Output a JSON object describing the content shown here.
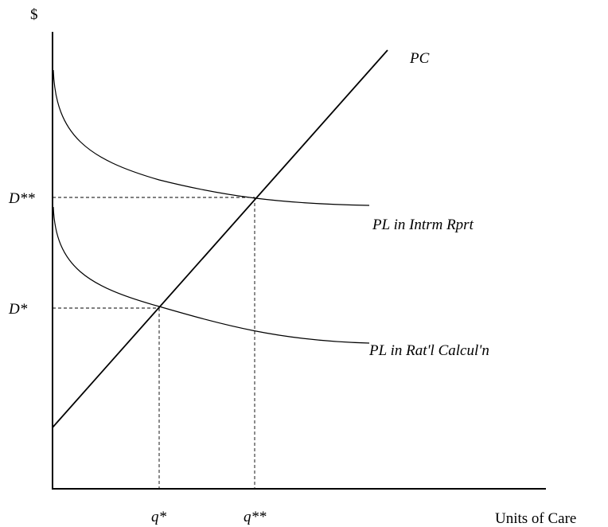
{
  "y_axis_label": "$",
  "x_axis_label": "Units of Care",
  "line_pc_label": "PC",
  "curve_intrm_label": "PL in Intrm Rprt",
  "curve_ratl_label": "PL in Rat'l Calcul'n",
  "y_tick_high": "D**",
  "y_tick_low": "D*",
  "x_tick_low": "q*",
  "x_tick_high": "q**"
}
